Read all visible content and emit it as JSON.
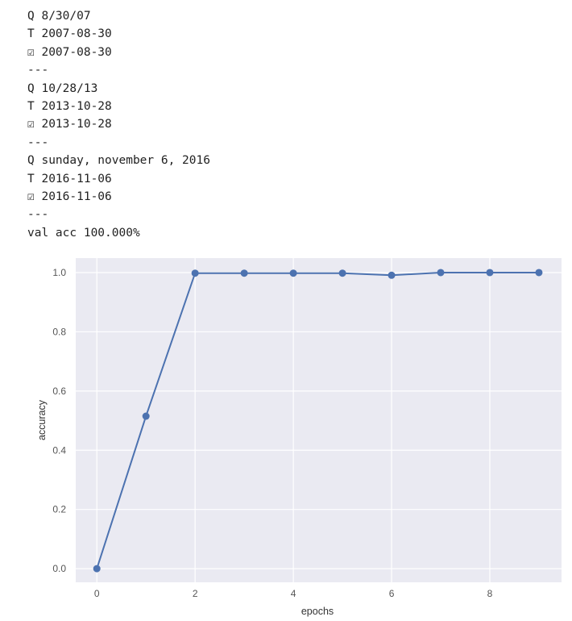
{
  "output_lines": [
    "Q 8/30/07",
    "T 2007-08-30",
    "☑ 2007-08-30",
    "---",
    "Q 10/28/13",
    "T 2013-10-28",
    "☑ 2013-10-28",
    "---",
    "Q sunday, november 6, 2016",
    "T 2016-11-06",
    "☑ 2016-11-06",
    "---",
    "val acc 100.000%"
  ],
  "chart_data": {
    "type": "line",
    "style": "seaborn darkgrid",
    "x": [
      0,
      1,
      2,
      3,
      4,
      5,
      6,
      7,
      8,
      9
    ],
    "values": [
      0.0,
      0.515,
      0.998,
      0.998,
      0.998,
      0.998,
      0.991,
      1.0,
      1.0,
      1.0
    ],
    "markers": true,
    "xlabel": "epochs",
    "ylabel": "accuracy",
    "xticks": [
      0,
      2,
      4,
      6,
      8
    ],
    "xtick_labels": [
      "0",
      "2",
      "4",
      "6",
      "8"
    ],
    "yticks": [
      0.0,
      0.2,
      0.4,
      0.6,
      0.8,
      1.0
    ],
    "ytick_labels": [
      "0.0",
      "0.2",
      "0.4",
      "0.6",
      "0.8",
      "1.0"
    ],
    "xlim": [
      -0.43,
      9.46
    ],
    "ylim": [
      -0.046,
      1.049
    ],
    "grid": true,
    "colors": {
      "line": "#4c72b0",
      "background": "#eaeaf2",
      "grid": "#ffffff"
    }
  }
}
